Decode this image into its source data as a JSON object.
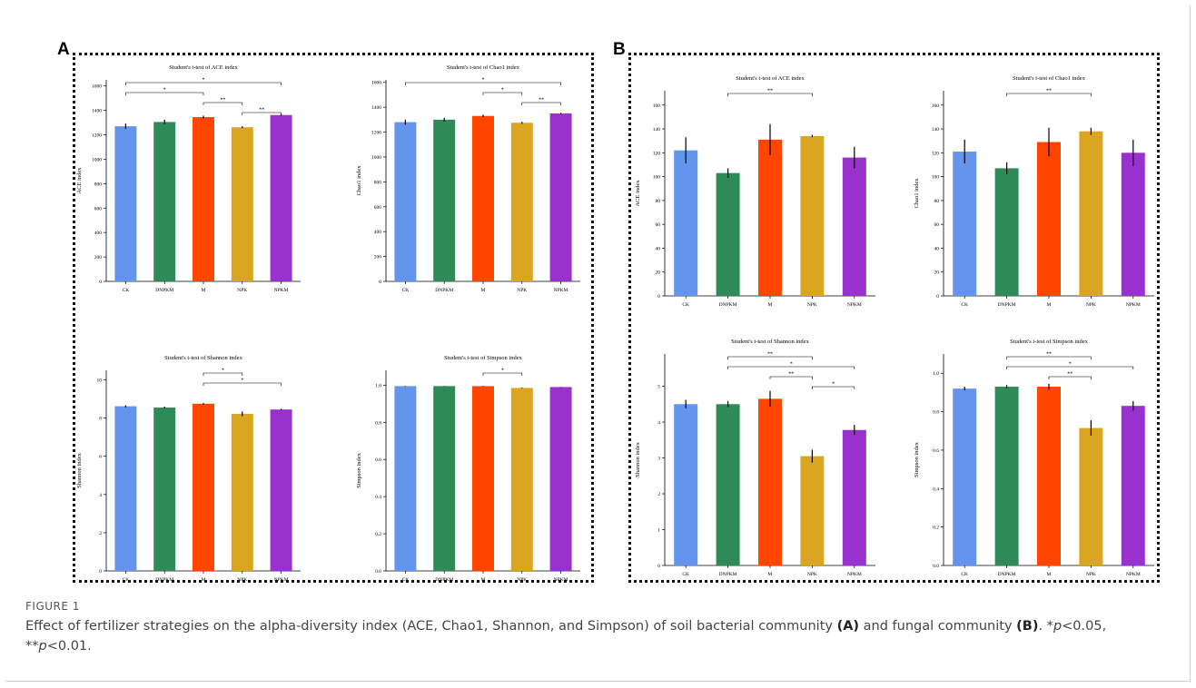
{
  "panels": [
    {
      "letter": "A"
    },
    {
      "letter": "B"
    }
  ],
  "categories": [
    "CK",
    "DNPKM",
    "M",
    "NPK",
    "NPKM"
  ],
  "colors": [
    "#6495ED",
    "#2E8B57",
    "#FF4500",
    "#DAA520",
    "#9932CC"
  ],
  "caption": {
    "label": "FIGURE 1",
    "text_1": "Effect of fertilizer strategies on the alpha-diversity index (ACE, Chao1, Shannon, and Simpson) of soil bacterial community ",
    "a_ref": "(A)",
    "text_2": " and fungal community ",
    "b_ref": "(B)",
    "text_3": ". *",
    "p1": "p",
    "text_4": "<0.05, **",
    "p2": "p",
    "text_5": "<0.01."
  },
  "chart_data": [
    {
      "type": "bar",
      "panel": "A",
      "title": "Student's t-test of ACE index",
      "ylabel": "ACE index",
      "categories": [
        "CK",
        "DNPKM",
        "M",
        "NPK",
        "NPKM"
      ],
      "values": [
        1270,
        1305,
        1345,
        1262,
        1362
      ],
      "errors": [
        22,
        18,
        12,
        8,
        6
      ],
      "ylim": [
        0,
        1650
      ],
      "yticks": [
        0,
        200,
        400,
        600,
        800,
        1000,
        1200,
        1400,
        1600
      ],
      "significance": [
        {
          "from": "CK",
          "to": "NPKM",
          "label": "*"
        },
        {
          "from": "CK",
          "to": "M",
          "label": "*"
        },
        {
          "from": "M",
          "to": "NPK",
          "label": "**"
        },
        {
          "from": "NPK",
          "to": "NPKM",
          "label": "**"
        }
      ]
    },
    {
      "type": "bar",
      "panel": "A",
      "title": "Student's t-test of Chao1 index",
      "ylabel": "Chao1 index",
      "categories": [
        "CK",
        "DNPKM",
        "M",
        "NPK",
        "NPKM"
      ],
      "values": [
        1280,
        1300,
        1330,
        1275,
        1350
      ],
      "errors": [
        20,
        15,
        10,
        8,
        6
      ],
      "ylim": [
        0,
        1620
      ],
      "yticks": [
        0,
        200,
        400,
        600,
        800,
        1000,
        1200,
        1400,
        1600
      ],
      "significance": [
        {
          "from": "CK",
          "to": "NPKM",
          "label": "*"
        },
        {
          "from": "M",
          "to": "NPK",
          "label": "*"
        },
        {
          "from": "NPK",
          "to": "NPKM",
          "label": "**"
        }
      ]
    },
    {
      "type": "bar",
      "panel": "A",
      "title": "Student's t-test of Shannon index",
      "ylabel": "Shannon index",
      "categories": [
        "CK",
        "DNPKM",
        "M",
        "NPK",
        "NPKM"
      ],
      "values": [
        8.62,
        8.55,
        8.75,
        8.22,
        8.45
      ],
      "errors": [
        0.05,
        0.05,
        0.04,
        0.12,
        0.04
      ],
      "ylim": [
        0,
        10.5
      ],
      "yticks": [
        0,
        2,
        4,
        6,
        8,
        10
      ],
      "significance": [
        {
          "from": "M",
          "to": "NPK",
          "label": "*"
        },
        {
          "from": "M",
          "to": "NPKM",
          "label": "*"
        }
      ]
    },
    {
      "type": "bar",
      "panel": "A",
      "title": "Student's t-test of Simpson index",
      "ylabel": "Simpson index",
      "categories": [
        "CK",
        "DNPKM",
        "M",
        "NPK",
        "NPKM"
      ],
      "values": [
        0.995,
        0.995,
        0.995,
        0.985,
        0.99
      ],
      "errors": [
        0.001,
        0.001,
        0.001,
        0.002,
        0.001
      ],
      "ylim": [
        0,
        1.08
      ],
      "yticks": [
        0.0,
        0.2,
        0.4,
        0.6,
        0.8,
        1.0
      ],
      "significance": [
        {
          "from": "M",
          "to": "NPK",
          "label": "*"
        }
      ]
    },
    {
      "type": "bar",
      "panel": "B",
      "title": "Student's t-test of ACE index",
      "ylabel": "ACE index",
      "categories": [
        "CK",
        "DNPKM",
        "M",
        "NPK",
        "NPKM"
      ],
      "values": [
        122,
        103,
        131,
        134,
        116
      ],
      "errors": [
        11,
        4,
        13,
        1,
        9
      ],
      "ylim": [
        0,
        172
      ],
      "yticks": [
        0,
        20,
        40,
        60,
        80,
        100,
        120,
        140,
        160
      ],
      "significance": [
        {
          "from": "DNPKM",
          "to": "NPK",
          "label": "**"
        }
      ]
    },
    {
      "type": "bar",
      "panel": "B",
      "title": "Student's t-test of Chao1 index",
      "ylabel": "Chao1 index",
      "categories": [
        "CK",
        "DNPKM",
        "M",
        "NPK",
        "NPKM"
      ],
      "values": [
        121,
        107,
        129,
        138,
        120
      ],
      "errors": [
        10,
        5,
        12,
        3,
        11
      ],
      "ylim": [
        0,
        172
      ],
      "yticks": [
        0,
        20,
        40,
        60,
        80,
        100,
        120,
        140,
        160
      ],
      "significance": [
        {
          "from": "DNPKM",
          "to": "NPK",
          "label": "**"
        }
      ]
    },
    {
      "type": "bar",
      "panel": "B",
      "title": "Student's t-test of Shannon index",
      "ylabel": "Shannon index",
      "categories": [
        "CK",
        "DNPKM",
        "M",
        "NPK",
        "NPKM"
      ],
      "values": [
        4.5,
        4.5,
        4.65,
        3.05,
        3.78
      ],
      "errors": [
        0.12,
        0.08,
        0.22,
        0.18,
        0.14
      ],
      "ylim": [
        0,
        5.9
      ],
      "yticks": [
        0,
        1,
        2,
        3,
        4,
        5
      ],
      "significance": [
        {
          "from": "DNPKM",
          "to": "NPK",
          "label": "**"
        },
        {
          "from": "DNPKM",
          "to": "NPKM",
          "label": "*"
        },
        {
          "from": "M",
          "to": "NPK",
          "label": "**"
        },
        {
          "from": "NPK",
          "to": "NPKM",
          "label": "*"
        }
      ]
    },
    {
      "type": "bar",
      "panel": "B",
      "title": "Student's t-test of Simpson index",
      "ylabel": "Simpson index",
      "categories": [
        "CK",
        "DNPKM",
        "M",
        "NPK",
        "NPKM"
      ],
      "values": [
        0.92,
        0.93,
        0.93,
        0.715,
        0.83
      ],
      "errors": [
        0.01,
        0.008,
        0.015,
        0.04,
        0.025
      ],
      "ylim": [
        0,
        1.1
      ],
      "yticks": [
        0.0,
        0.2,
        0.4,
        0.6,
        0.8,
        1.0
      ],
      "significance": [
        {
          "from": "DNPKM",
          "to": "NPK",
          "label": "**"
        },
        {
          "from": "DNPKM",
          "to": "NPKM",
          "label": "*"
        },
        {
          "from": "M",
          "to": "NPK",
          "label": "**"
        }
      ]
    }
  ]
}
